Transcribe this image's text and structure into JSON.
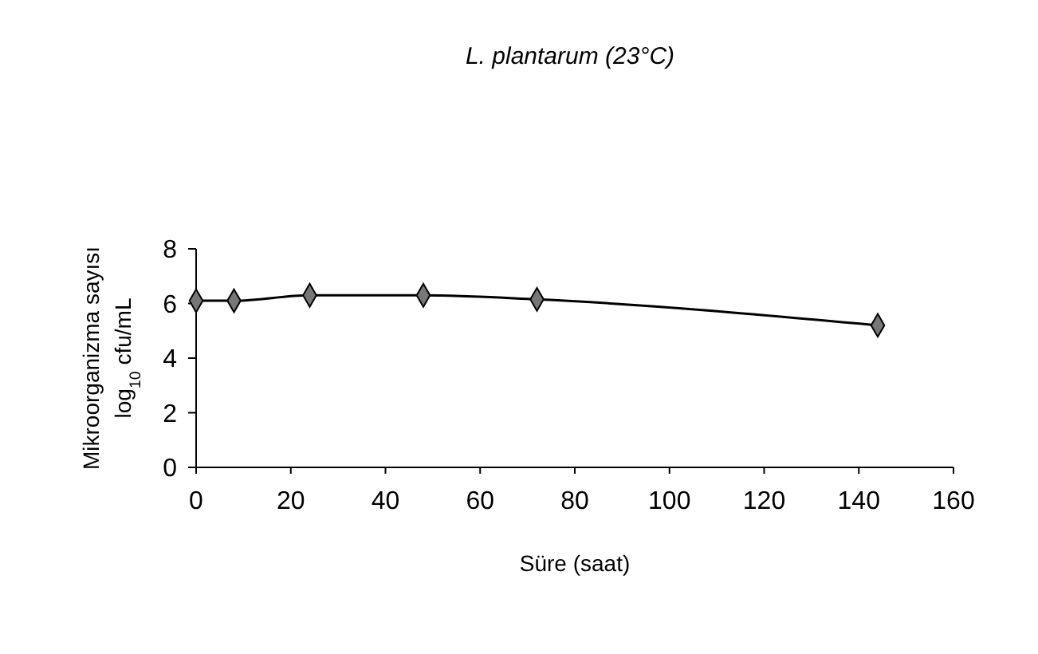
{
  "chart_data": {
    "type": "line",
    "title": "L. plantarum (23°C)",
    "xlabel": "Süre (saat)",
    "ylabel": "Mikroorganizma sayısı log$_{10}$ cfu/mL",
    "x": [
      0,
      8,
      24,
      48,
      72,
      144
    ],
    "series": [
      {
        "color": "#000000",
        "values": [
          6.1,
          6.1,
          6.3,
          6.3,
          6.15,
          5.2
        ]
      }
    ],
    "xlim": [
      0,
      160
    ],
    "xticks": [
      0,
      20,
      40,
      60,
      80,
      100,
      120,
      140,
      160
    ],
    "ylim": [
      0,
      8
    ],
    "yticks": [
      0,
      2,
      4,
      6,
      8
    ],
    "marker": "diamond",
    "line_style": "solid",
    "grid": false
  }
}
